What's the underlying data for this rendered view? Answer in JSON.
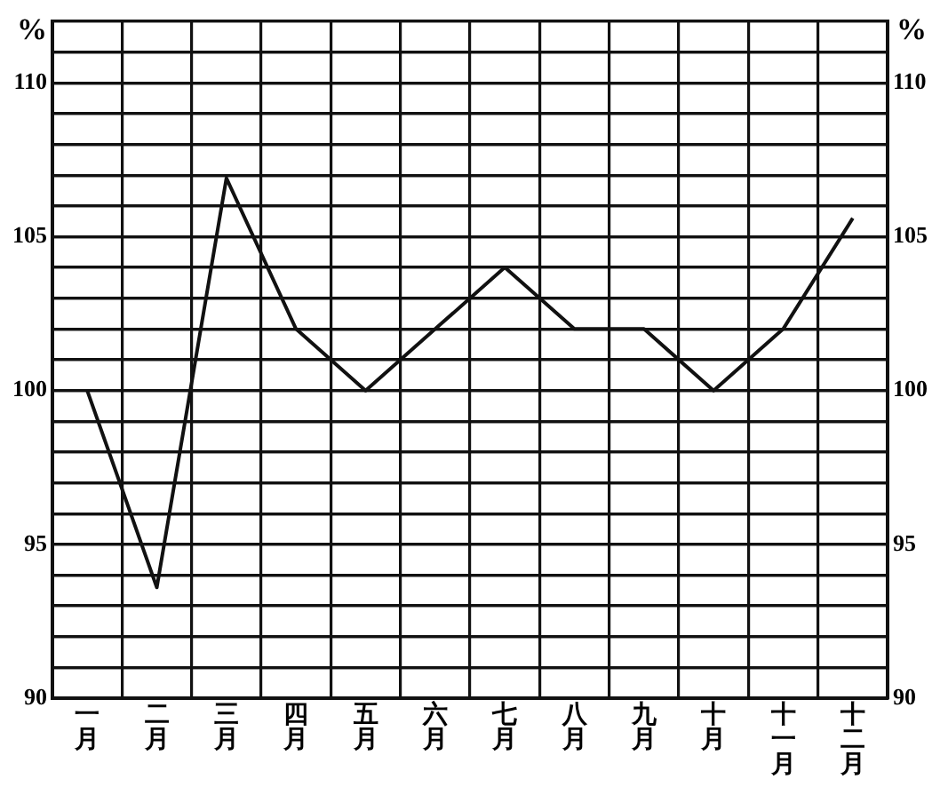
{
  "chart_data": {
    "type": "line",
    "ylabel": "%",
    "y2label": "%",
    "categories": [
      "一月",
      "二月",
      "三月",
      "四月",
      "五月",
      "六月",
      "七月",
      "八月",
      "九月",
      "十月",
      "十一月",
      "十二月"
    ],
    "series": [
      {
        "color": "#111111",
        "values": [
          100,
          93.6,
          106.9,
          102,
          100,
          102,
          104,
          102,
          102,
          100,
          102,
          105.6
        ]
      }
    ],
    "ylim": [
      90,
      112
    ],
    "yticks": [
      90,
      {
        "value": 91,
        "label": null
      },
      {
        "value": 92,
        "label": null
      },
      {
        "value": 93,
        "label": null
      },
      {
        "value": 94,
        "label": null
      },
      95,
      {
        "value": 96,
        "label": null
      },
      {
        "value": 97,
        "label": null
      },
      {
        "value": 98,
        "label": null
      },
      {
        "value": 99,
        "label": null
      },
      100,
      {
        "value": 101,
        "label": null
      },
      {
        "value": 102,
        "label": null
      },
      {
        "value": 103,
        "label": null
      },
      {
        "value": 104,
        "label": null
      },
      105,
      {
        "value": 106,
        "label": null
      },
      {
        "value": 107,
        "label": null
      },
      {
        "value": 108,
        "label": null
      },
      {
        "value": 109,
        "label": null
      },
      110,
      {
        "value": 111,
        "label": null
      },
      {
        "value": 112,
        "label": null
      }
    ],
    "y2lim": [
      90,
      112
    ],
    "y2ticks": [
      90,
      {
        "value": 91,
        "label": null
      },
      {
        "value": 92,
        "label": null
      },
      {
        "value": 93,
        "label": null
      },
      {
        "value": 94,
        "label": null
      },
      95,
      {
        "value": 96,
        "label": null
      },
      {
        "value": 97,
        "label": null
      },
      {
        "value": 98,
        "label": null
      },
      {
        "value": 99,
        "label": null
      },
      100,
      {
        "value": 101,
        "label": null
      },
      {
        "value": 102,
        "label": null
      },
      {
        "value": 103,
        "label": null
      },
      {
        "value": 104,
        "label": null
      },
      105,
      {
        "value": 106,
        "label": null
      },
      {
        "value": 107,
        "label": null
      },
      {
        "value": 108,
        "label": null
      },
      {
        "value": 109,
        "label": null
      },
      110,
      {
        "value": 111,
        "label": null
      },
      {
        "value": 112,
        "label": null
      }
    ],
    "grid": true,
    "legend": false,
    "marker": "none",
    "line_style": "solid"
  }
}
